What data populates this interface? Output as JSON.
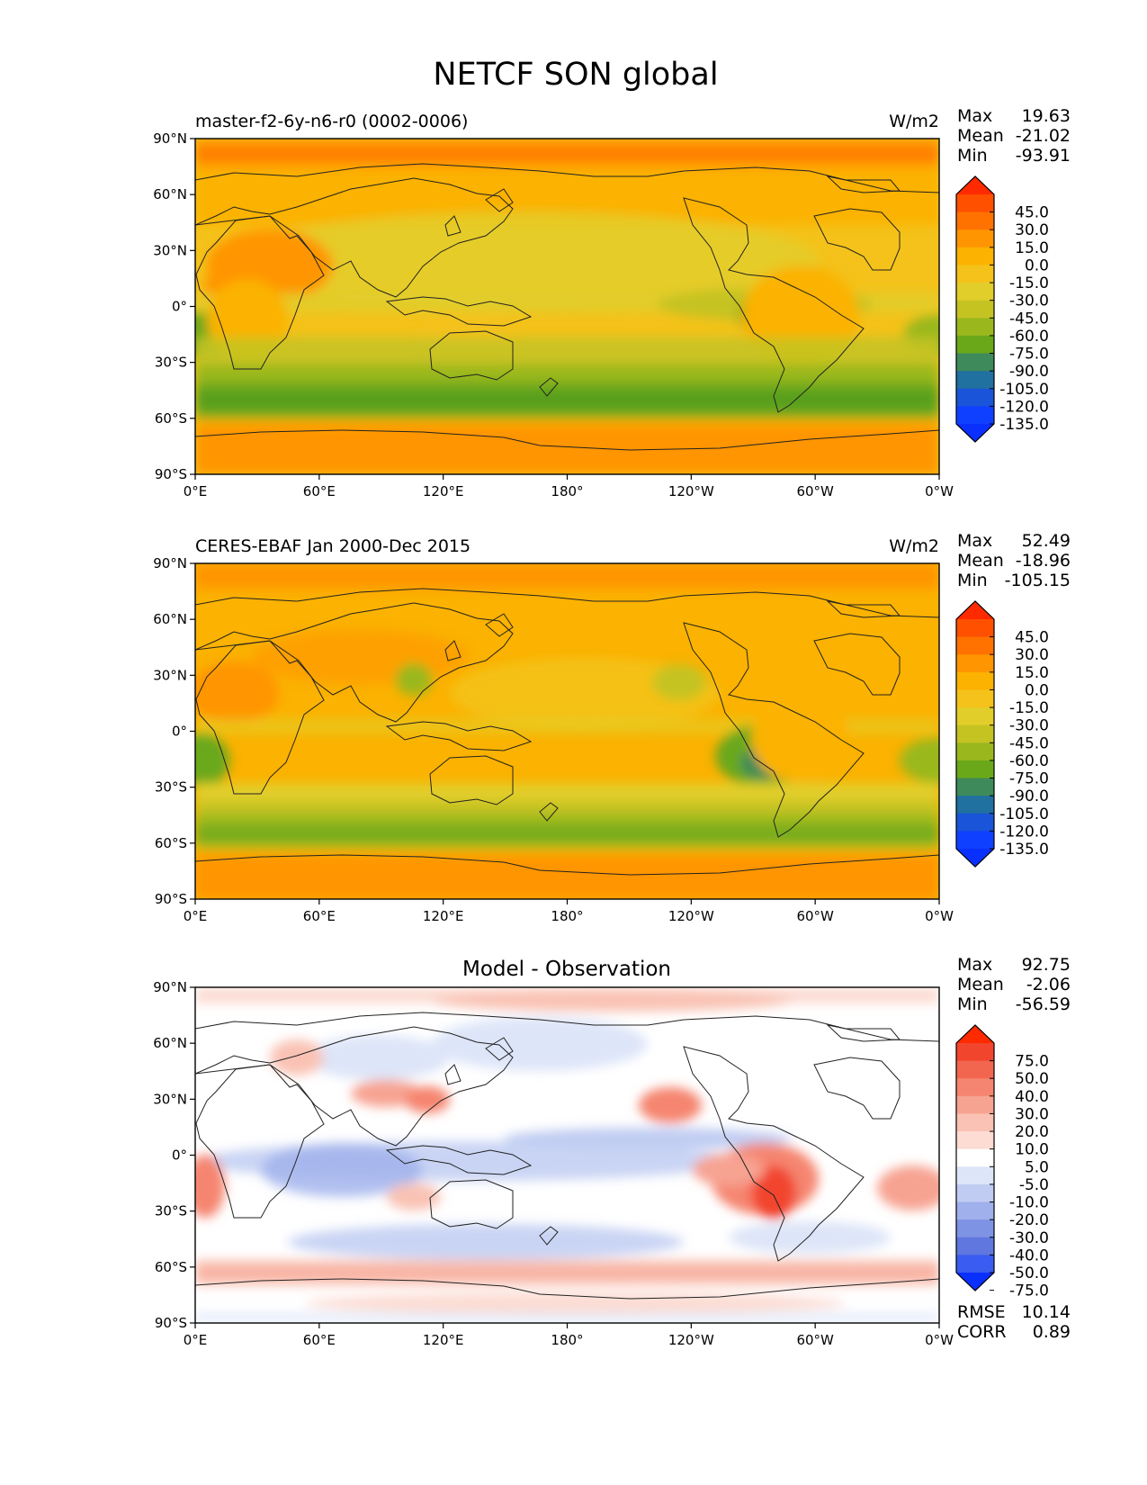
{
  "figure": {
    "title": "NETCF SON global"
  },
  "axes": {
    "lat_ticks": [
      "90°N",
      "60°N",
      "30°N",
      "0°",
      "30°S",
      "60°S",
      "90°S"
    ],
    "lon_ticks": [
      "0°E",
      "60°E",
      "120°E",
      "180°",
      "120°W",
      "60°W",
      "0°W"
    ]
  },
  "panels": [
    {
      "id": "model",
      "left_title": "master-f2-6y-n6-r0 (0002-0006)",
      "center_title": "",
      "units": "W/m2",
      "stats": [
        {
          "label": "Max",
          "value": "19.63"
        },
        {
          "label": "Mean",
          "value": "-21.02"
        },
        {
          "label": "Min",
          "value": "-93.91"
        }
      ],
      "colorbar": {
        "labels": [
          "45.0",
          "30.0",
          "15.0",
          "0.0",
          "-15.0",
          "-30.0",
          "-45.0",
          "-60.0",
          "-75.0",
          "-90.0",
          "-105.0",
          "-120.0",
          "-135.0"
        ],
        "colors": [
          "#ff2a00",
          "#ff5000",
          "#ff7200",
          "#ff9500",
          "#fbb200",
          "#f4c21a",
          "#e2ce2a",
          "#c5c322",
          "#9ab81e",
          "#6aa81a",
          "#3e8a5a",
          "#2070a0",
          "#1a54d8",
          "#1040ff",
          "#0a30ff"
        ]
      },
      "metrics": []
    },
    {
      "id": "obs",
      "left_title": "CERES-EBAF Jan 2000-Dec 2015",
      "center_title": "",
      "units": "W/m2",
      "stats": [
        {
          "label": "Max",
          "value": "52.49"
        },
        {
          "label": "Mean",
          "value": "-18.96"
        },
        {
          "label": "Min",
          "value": "-105.15"
        }
      ],
      "colorbar": {
        "labels": [
          "45.0",
          "30.0",
          "15.0",
          "0.0",
          "-15.0",
          "-30.0",
          "-45.0",
          "-60.0",
          "-75.0",
          "-90.0",
          "-105.0",
          "-120.0",
          "-135.0"
        ],
        "colors": [
          "#ff2a00",
          "#ff5000",
          "#ff7200",
          "#ff9500",
          "#fbb200",
          "#f4c21a",
          "#e2ce2a",
          "#c5c322",
          "#9ab81e",
          "#6aa81a",
          "#3e8a5a",
          "#2070a0",
          "#1a54d8",
          "#1040ff",
          "#0a30ff"
        ]
      },
      "metrics": []
    },
    {
      "id": "diff",
      "left_title": "",
      "center_title": "Model - Observation",
      "units": "",
      "stats": [
        {
          "label": "Max",
          "value": "92.75"
        },
        {
          "label": "Mean",
          "value": "-2.06"
        },
        {
          "label": "Min",
          "value": "-56.59"
        }
      ],
      "colorbar": {
        "labels": [
          "75.0",
          "50.0",
          "40.0",
          "30.0",
          "20.0",
          "10.0",
          "5.0",
          "-5.0",
          "-10.0",
          "-20.0",
          "-30.0",
          "-40.0",
          "-50.0",
          "-75.0"
        ],
        "colors": [
          "#ff2a00",
          "#f2452e",
          "#f2654f",
          "#f58570",
          "#f7a392",
          "#f9c2b4",
          "#fcdcd3",
          "#ffffff",
          "#dde5f8",
          "#c0ccf2",
          "#9fb0ec",
          "#7f93e5",
          "#5f77df",
          "#3a5cf0",
          "#0a30ff"
        ]
      },
      "metrics": [
        {
          "label": "RMSE",
          "value": "10.14"
        },
        {
          "label": "CORR",
          "value": "0.89"
        }
      ]
    }
  ]
}
